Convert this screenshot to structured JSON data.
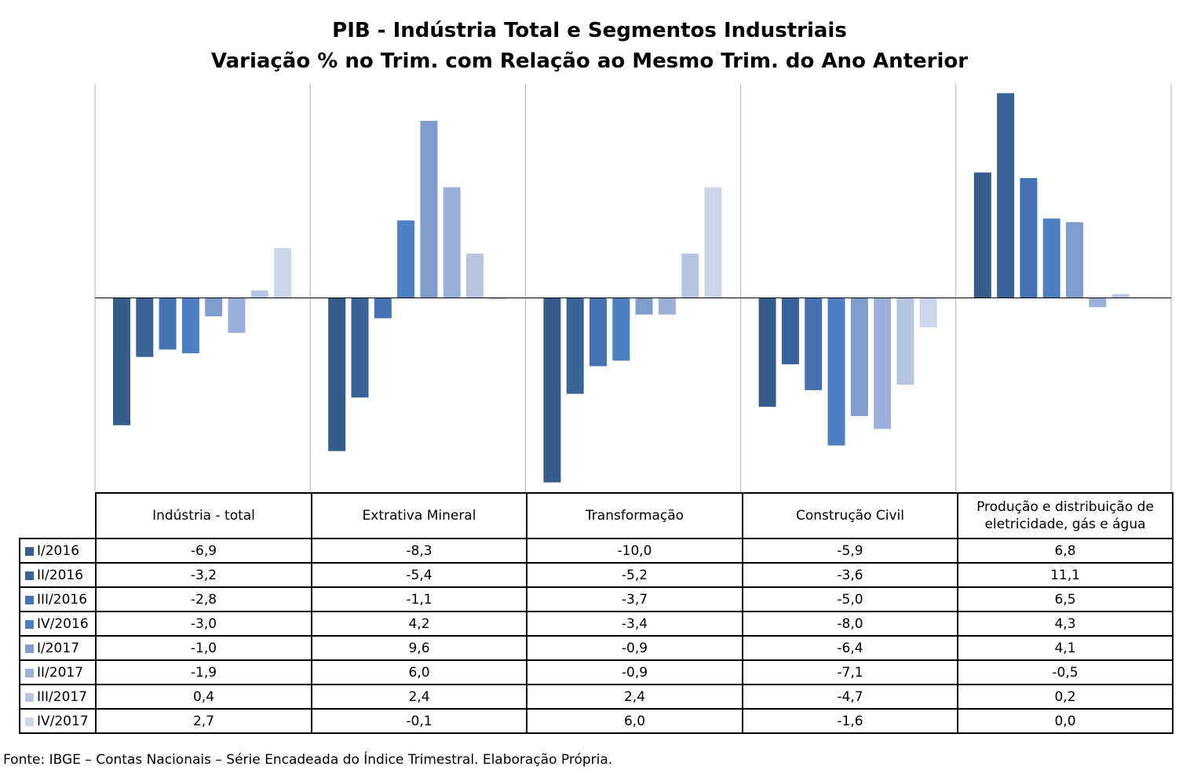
{
  "chart_data": {
    "type": "bar",
    "title": "PIB - Indústria Total e Segmentos Industriais",
    "subtitle": "Variação % no Trim. com Relação ao Mesmo Trim. do Ano Anterior",
    "categories": [
      "Indústria - total",
      "Extrativa Mineral",
      "Transformação",
      "Construção Civil",
      "Produção e distribuição de eletricidade, gás e água"
    ],
    "category_lines": [
      [
        "Indústria - total"
      ],
      [
        "Extrativa Mineral"
      ],
      [
        "Transformação"
      ],
      [
        "Construção Civil"
      ],
      [
        "Produção e distribuição de",
        "eletricidade, gás e água"
      ]
    ],
    "series": [
      {
        "name": "I/2016",
        "color": "#355c8b",
        "values": [
          -6.9,
          -8.3,
          -10.0,
          -5.9,
          6.8
        ],
        "labels": [
          "-6,9",
          "-8,3",
          "-10,0",
          "-5,9",
          "6,8"
        ]
      },
      {
        "name": "II/2016",
        "color": "#3a6497",
        "values": [
          -3.2,
          -5.4,
          -5.2,
          -3.6,
          11.1
        ],
        "labels": [
          "-3,2",
          "-5,4",
          "-5,2",
          "-3,6",
          "11,1"
        ]
      },
      {
        "name": "III/2016",
        "color": "#4572b2",
        "values": [
          -2.8,
          -1.1,
          -3.7,
          -5.0,
          6.5
        ],
        "labels": [
          "-2,8",
          "-1,1",
          "-3,7",
          "-5,0",
          "6,5"
        ]
      },
      {
        "name": "IV/2016",
        "color": "#4c80c2",
        "values": [
          -3.0,
          4.2,
          -3.4,
          -8.0,
          4.3
        ],
        "labels": [
          "-3,0",
          "4,2",
          "-3,4",
          "-8,0",
          "4,3"
        ]
      },
      {
        "name": "I/2017",
        "color": "#7f9dca",
        "values": [
          -1.0,
          9.6,
          -0.9,
          -6.4,
          4.1
        ],
        "labels": [
          "-1,0",
          "9,6",
          "-0,9",
          "-6,4",
          "4,1"
        ]
      },
      {
        "name": "II/2017",
        "color": "#9bb0d8",
        "values": [
          -1.9,
          6.0,
          -0.9,
          -7.1,
          -0.5
        ],
        "labels": [
          "-1,9",
          "6,0",
          "-0,9",
          "-7,1",
          "-0,5"
        ]
      },
      {
        "name": "III/2017",
        "color": "#b8c5e2",
        "values": [
          0.4,
          2.4,
          2.4,
          -4.7,
          0.2
        ],
        "labels": [
          "0,4",
          "2,4",
          "2,4",
          "-4,7",
          "0,2"
        ]
      },
      {
        "name": "IV/2017",
        "color": "#cdd6e9",
        "values": [
          2.7,
          -0.1,
          6.0,
          -1.6,
          0.0
        ],
        "labels": [
          "2,7",
          "-0,1",
          "6,0",
          "-1,6",
          "0,0"
        ]
      }
    ],
    "ylim": [
      -10.5,
      11.1
    ],
    "legend": "data-table",
    "grid": false
  },
  "source_note": "Fonte: IBGE – Contas Nacionais – Série Encadeada do Índice Trimestral. Elaboração Própria."
}
